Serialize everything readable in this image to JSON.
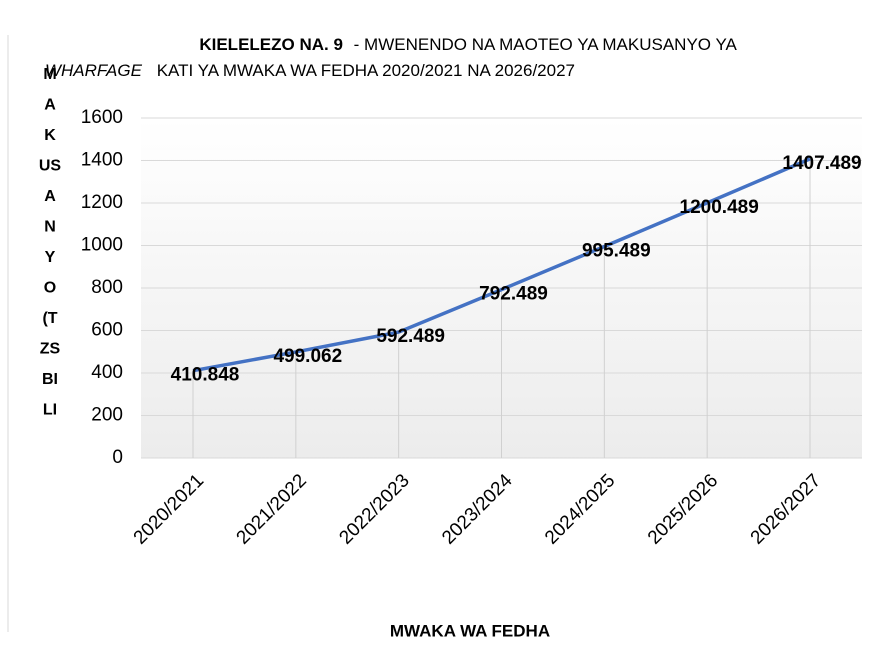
{
  "chart_data": {
    "type": "line",
    "title": [
      "KIELELEZO NA. 9",
      "- MWENENDO NA MAOTEO YA MAKUSANYO YA",
      "WHARFAGE",
      "KATI YA MWAKA WA FEDHA 2020/2021 NA 2026/2027"
    ],
    "y_label_lines": [
      "M",
      "A",
      "K",
      "US",
      "A",
      "N",
      "Y",
      "O",
      "(T",
      "ZS",
      "BI",
      "LI"
    ],
    "x_label": "MWAKA WA FEDHA",
    "categories": [
      "2020/2021",
      "2021/2022",
      "2022/2023",
      "2023/2024",
      "2024/2025",
      "2025/2026",
      "2026/2027"
    ],
    "series": [
      {
        "color": "#4472c4",
        "values": [
          410.848,
          499.062,
          592.489,
          792.489,
          995.489,
          1200.489,
          1407.489
        ]
      }
    ],
    "ylim": [
      0,
      1600
    ],
    "yticks": [
      0,
      200,
      400,
      600,
      800,
      1000,
      1200,
      1400,
      1600
    ],
    "grid": true
  }
}
